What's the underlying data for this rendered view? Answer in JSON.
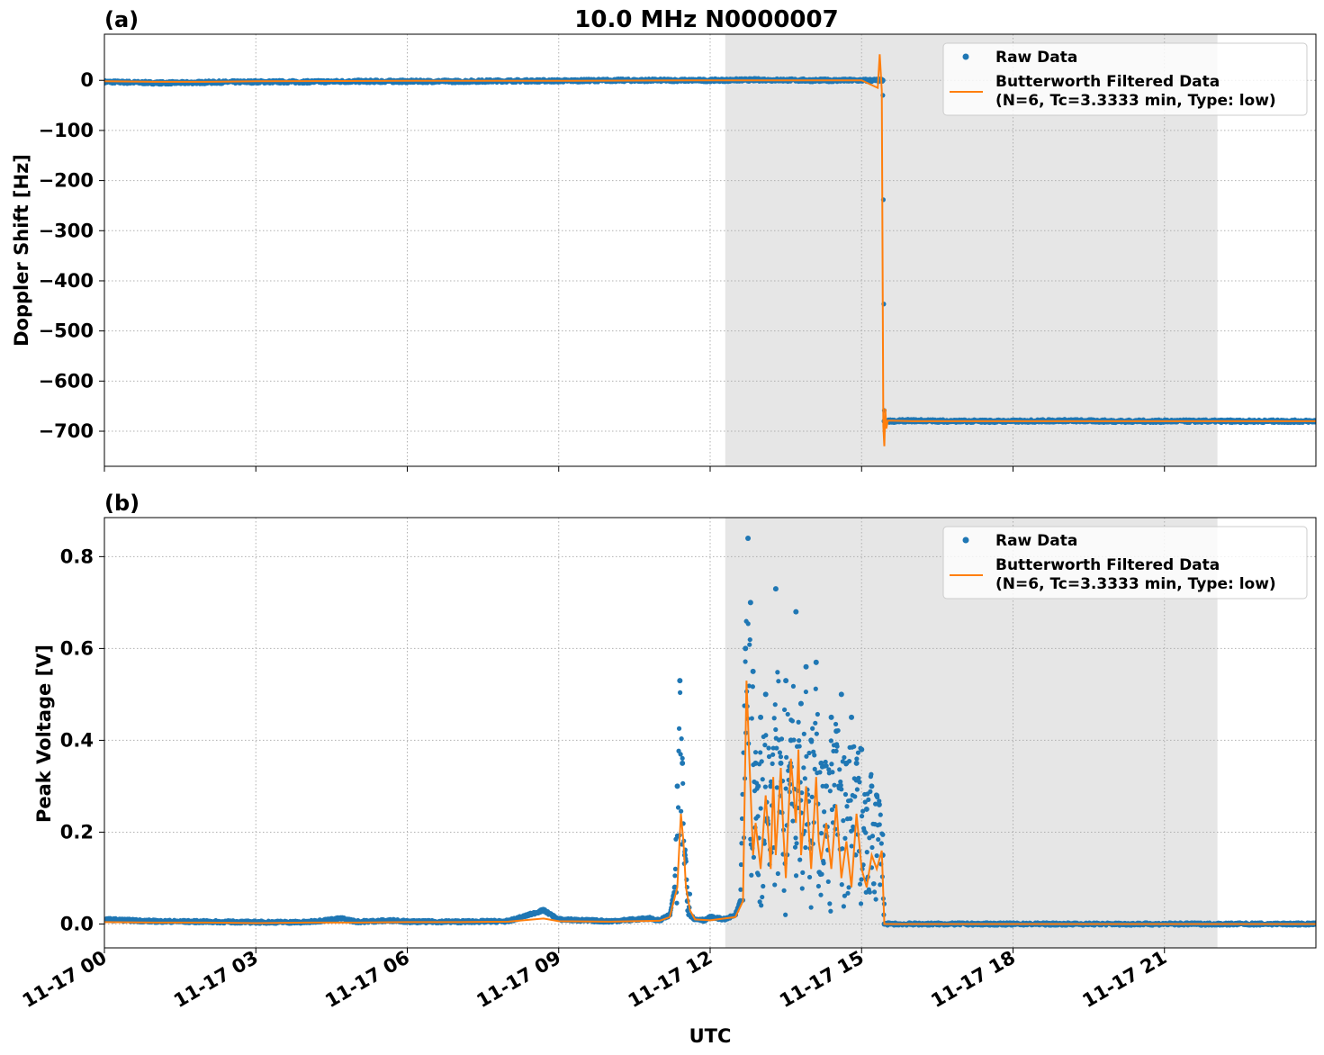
{
  "figure": {
    "title": "10.0 MHz N0000007",
    "xlabel": "UTC",
    "x_ticks": [
      "11-17 00",
      "11-17 03",
      "11-17 06",
      "11-17 09",
      "11-17 12",
      "11-17 15",
      "11-17 18",
      "11-17 21"
    ],
    "legend": {
      "raw_label": "Raw Data",
      "filtered_label_line1": "Butterworth Filtered Data",
      "filtered_label_line2": "(N=6, Tc=3.3333 min, Type: low)"
    },
    "colors": {
      "raw": "#1f77b4",
      "filtered": "#ff7f0e",
      "shade": "#e6e6e6",
      "grid": "#b0b0b0"
    }
  },
  "chart_data": [
    {
      "type": "line",
      "panel_label": "(a)",
      "title": "10.0 MHz N0000007",
      "xlabel": "",
      "ylabel": "Doppler Shift [Hz]",
      "x_unit": "hours after 11-17 00:00 UTC",
      "xlim": [
        0,
        24
      ],
      "ylim": [
        -770,
        92
      ],
      "yticks": [
        0,
        -100,
        -200,
        -300,
        -400,
        -500,
        -600,
        -700
      ],
      "ytick_labels": [
        "0",
        "−100",
        "−200",
        "−300",
        "−400",
        "−500",
        "−600",
        "−700"
      ],
      "grid": true,
      "legend_position": "top-right",
      "shaded_interval": [
        12.3,
        22.05
      ],
      "series": [
        {
          "name": "Raw Data",
          "style": "points",
          "x": [
            0,
            0.5,
            1,
            1.5,
            2,
            3,
            4,
            5,
            6,
            7,
            8,
            9,
            10,
            11,
            12,
            13,
            14,
            15,
            15.3,
            15.42,
            15.45,
            16,
            17,
            18,
            19,
            20,
            21,
            22,
            23,
            24
          ],
          "y": [
            -3,
            -4,
            -5,
            -5,
            -4,
            -3,
            -3,
            -2,
            -2,
            -2,
            -1,
            -1,
            0,
            0,
            0,
            1,
            0,
            0,
            0,
            0,
            -680,
            -679,
            -680,
            -680,
            -679,
            -680,
            -680,
            -680,
            -680,
            -680
          ]
        },
        {
          "name": "Butterworth Filtered Data",
          "style": "line",
          "x": [
            0,
            1,
            2,
            3,
            6,
            9,
            12,
            15,
            15.32,
            15.36,
            15.4,
            15.43,
            15.45,
            15.47,
            15.49,
            15.52,
            16,
            18,
            21,
            24
          ],
          "y": [
            -2,
            -3,
            -3,
            -2,
            -1,
            -1,
            0,
            0,
            -15,
            52,
            -20,
            -690,
            -730,
            -655,
            -695,
            -679,
            -680,
            -680,
            -680,
            -680
          ]
        }
      ]
    },
    {
      "type": "line",
      "panel_label": "(b)",
      "title": "",
      "xlabel": "UTC",
      "ylabel": "Peak Voltage [V]",
      "x_unit": "hours after 11-17 00:00 UTC",
      "xlim": [
        0,
        24
      ],
      "ylim": [
        -0.052,
        0.885
      ],
      "yticks": [
        0.0,
        0.2,
        0.4,
        0.6,
        0.8
      ],
      "ytick_labels": [
        "0.0",
        "0.2",
        "0.4",
        "0.6",
        "0.8"
      ],
      "grid": true,
      "legend_position": "top-right",
      "shaded_interval": [
        12.3,
        22.05
      ],
      "series": [
        {
          "name": "Raw Data",
          "style": "points",
          "x": [
            0,
            0.5,
            1,
            2,
            3,
            4,
            4.7,
            5,
            5.8,
            6,
            7,
            8,
            8.7,
            9,
            10,
            10.8,
            11,
            11.2,
            11.3,
            11.35,
            11.4,
            11.45,
            11.5,
            11.55,
            11.6,
            11.7,
            11.8,
            11.9,
            12,
            12.3,
            12.5,
            12.6,
            12.7,
            12.75,
            12.8,
            12.85,
            12.9,
            12.95,
            13,
            13.1,
            13.2,
            13.3,
            13.4,
            13.5,
            13.6,
            13.7,
            13.8,
            13.9,
            14,
            14.1,
            14.2,
            14.3,
            14.4,
            14.5,
            14.6,
            14.7,
            14.8,
            14.9,
            15,
            15.1,
            15.2,
            15.3,
            15.35,
            15.42,
            15.45,
            16,
            18,
            20,
            22,
            24
          ],
          "y": [
            0.01,
            0.008,
            0.006,
            0.005,
            0.004,
            0.004,
            0.012,
            0.005,
            0.008,
            0.005,
            0.005,
            0.006,
            0.03,
            0.01,
            0.006,
            0.012,
            0.008,
            0.02,
            0.08,
            0.3,
            0.53,
            0.35,
            0.15,
            0.05,
            0.02,
            0.01,
            0.01,
            0.008,
            0.015,
            0.01,
            0.02,
            0.05,
            0.6,
            0.84,
            0.7,
            0.55,
            0.35,
            0.3,
            0.45,
            0.5,
            0.3,
            0.73,
            0.35,
            0.53,
            0.4,
            0.68,
            0.48,
            0.56,
            0.4,
            0.57,
            0.35,
            0.3,
            0.45,
            0.42,
            0.5,
            0.35,
            0.45,
            0.35,
            0.38,
            0.25,
            0.3,
            0.28,
            0.26,
            0.15,
            0.0,
            0.0,
            0.0,
            0.0,
            0.0,
            0.0
          ]
        },
        {
          "name": "Butterworth Filtered Data",
          "style": "line",
          "x": [
            0,
            1,
            2,
            3,
            4,
            5,
            6,
            7,
            8,
            8.7,
            9,
            10,
            11,
            11.2,
            11.35,
            11.42,
            11.47,
            11.52,
            11.6,
            11.7,
            12,
            12.5,
            12.65,
            12.72,
            12.78,
            12.85,
            12.9,
            13,
            13.05,
            13.1,
            13.2,
            13.25,
            13.3,
            13.4,
            13.45,
            13.5,
            13.6,
            13.7,
            13.75,
            13.8,
            13.9,
            14,
            14.1,
            14.15,
            14.2,
            14.3,
            14.4,
            14.5,
            14.6,
            14.7,
            14.8,
            14.9,
            15,
            15.1,
            15.2,
            15.3,
            15.4,
            15.45,
            16,
            18,
            20,
            22,
            24
          ],
          "y": [
            0.004,
            0.003,
            0.003,
            0.002,
            0.003,
            0.003,
            0.004,
            0.004,
            0.005,
            0.012,
            0.006,
            0.005,
            0.007,
            0.015,
            0.08,
            0.24,
            0.18,
            0.08,
            0.03,
            0.01,
            0.008,
            0.015,
            0.05,
            0.53,
            0.35,
            0.15,
            0.22,
            0.12,
            0.2,
            0.28,
            0.12,
            0.32,
            0.15,
            0.34,
            0.2,
            0.1,
            0.36,
            0.22,
            0.38,
            0.15,
            0.3,
            0.12,
            0.32,
            0.18,
            0.14,
            0.22,
            0.12,
            0.26,
            0.1,
            0.18,
            0.08,
            0.24,
            0.12,
            0.08,
            0.15,
            0.12,
            0.16,
            0.0,
            0.0,
            0.0,
            0.0,
            0.0,
            0.0
          ]
        }
      ]
    }
  ]
}
